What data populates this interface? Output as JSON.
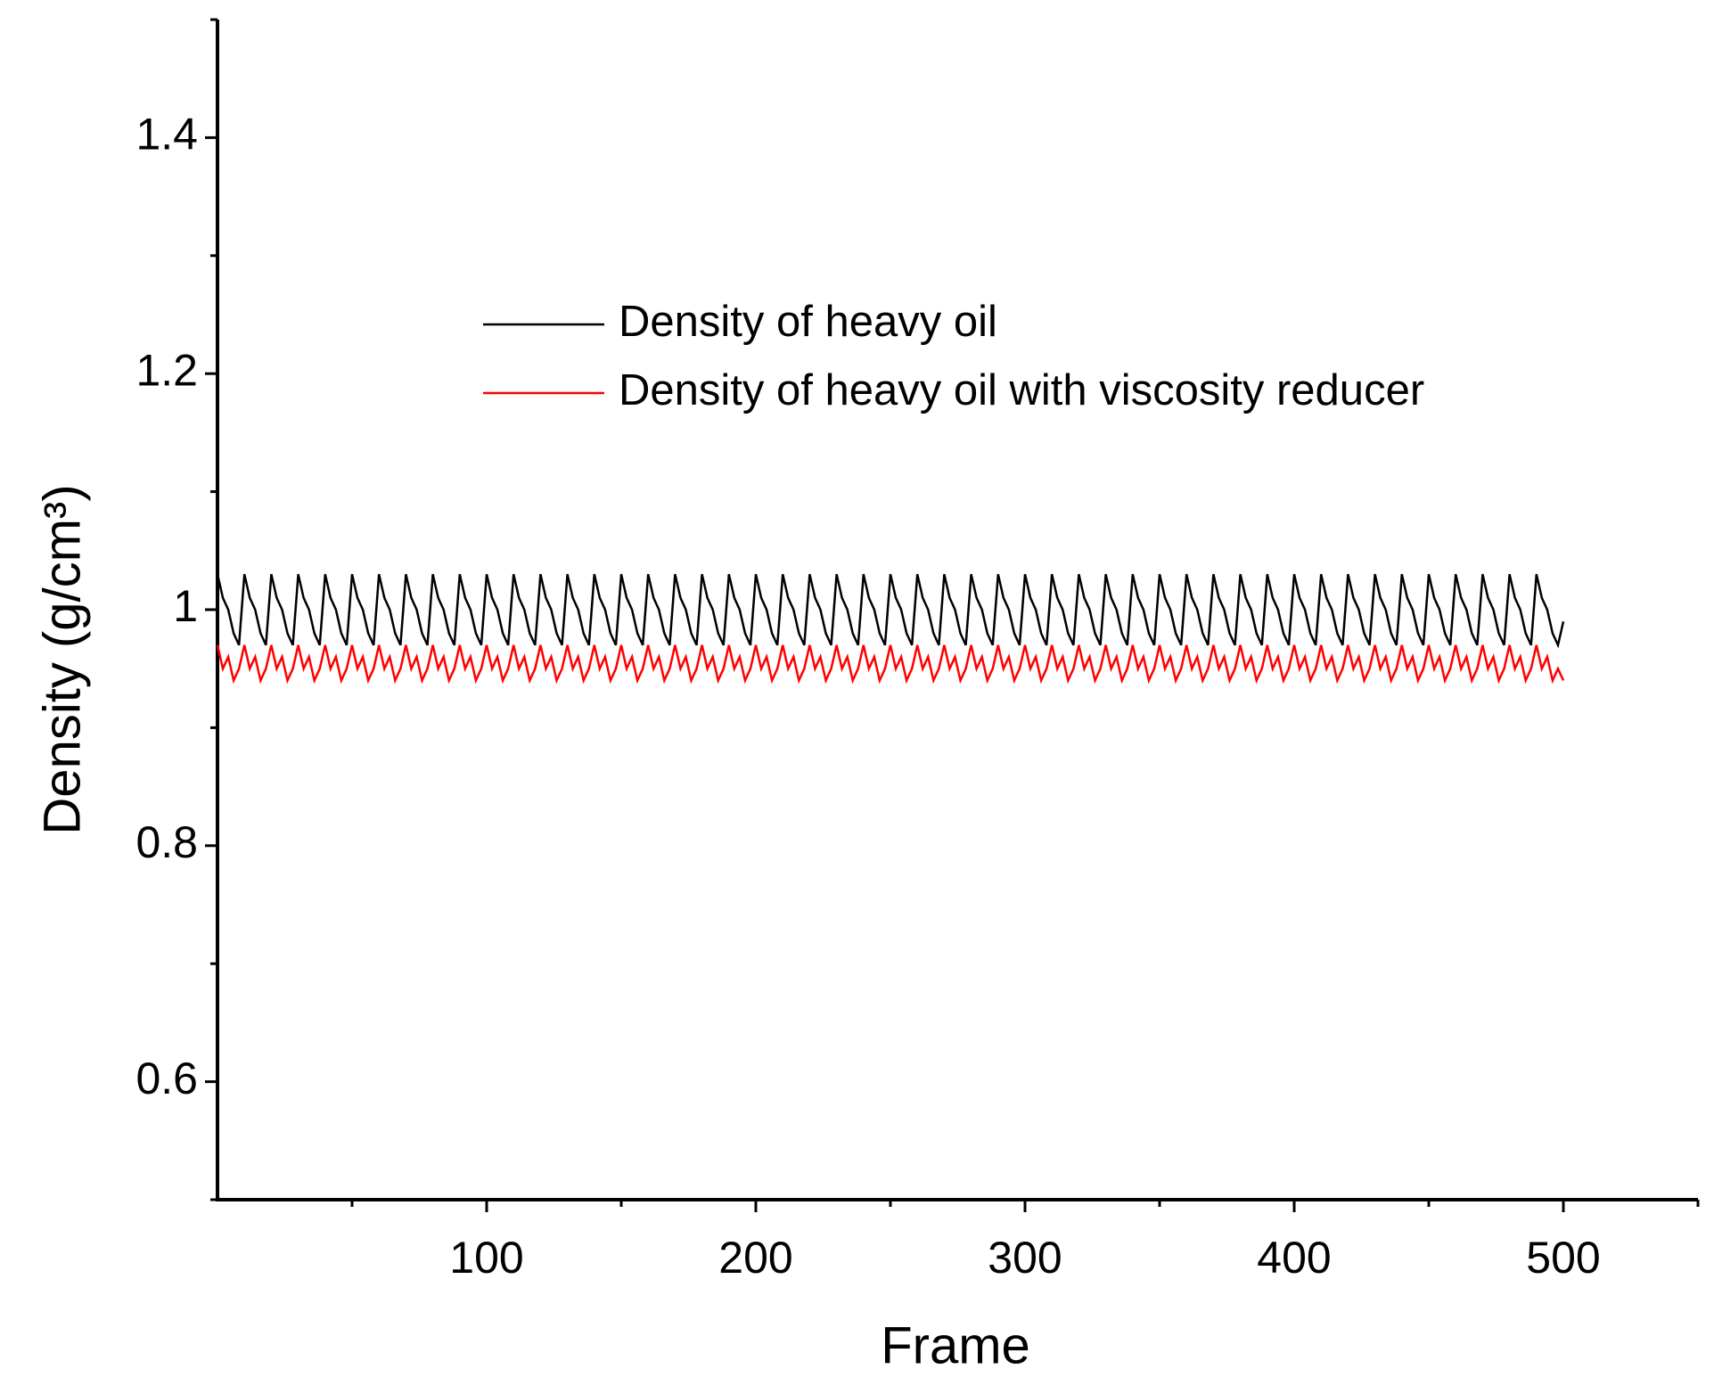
{
  "chart_data": {
    "type": "line",
    "xlabel": "Frame",
    "ylabel": "Density (g/cm³)",
    "xlim": [
      0,
      550
    ],
    "ylim": [
      0.5,
      1.5
    ],
    "xticks": [
      100,
      200,
      300,
      400,
      500
    ],
    "xminorticks": [
      50,
      150,
      250,
      350,
      450,
      550
    ],
    "yticks": [
      0.6,
      0.8,
      1,
      1.2,
      1.4
    ],
    "yminorticks": [
      0.5,
      0.7,
      0.9,
      1.1,
      1.3,
      1.5
    ],
    "legend": "upper-center",
    "x": [
      0,
      2,
      4,
      6,
      8,
      10,
      12,
      14,
      16,
      18,
      20,
      22,
      24,
      26,
      28,
      30,
      32,
      34,
      36,
      38,
      40,
      42,
      44,
      46,
      48,
      50,
      52,
      54,
      56,
      58,
      60,
      62,
      64,
      66,
      68,
      70,
      72,
      74,
      76,
      78,
      80,
      82,
      84,
      86,
      88,
      90,
      92,
      94,
      96,
      98,
      100,
      102,
      104,
      106,
      108,
      110,
      112,
      114,
      116,
      118,
      120,
      122,
      124,
      126,
      128,
      130,
      132,
      134,
      136,
      138,
      140,
      142,
      144,
      146,
      148,
      150,
      152,
      154,
      156,
      158,
      160,
      162,
      164,
      166,
      168,
      170,
      172,
      174,
      176,
      178,
      180,
      182,
      184,
      186,
      188,
      190,
      192,
      194,
      196,
      198,
      200,
      202,
      204,
      206,
      208,
      210,
      212,
      214,
      216,
      218,
      220,
      222,
      224,
      226,
      228,
      230,
      232,
      234,
      236,
      238,
      240,
      242,
      244,
      246,
      248,
      250,
      252,
      254,
      256,
      258,
      260,
      262,
      264,
      266,
      268,
      270,
      272,
      274,
      276,
      278,
      280,
      282,
      284,
      286,
      288,
      290,
      292,
      294,
      296,
      298,
      300,
      302,
      304,
      306,
      308,
      310,
      312,
      314,
      316,
      318,
      320,
      322,
      324,
      326,
      328,
      330,
      332,
      334,
      336,
      338,
      340,
      342,
      344,
      346,
      348,
      350,
      352,
      354,
      356,
      358,
      360,
      362,
      364,
      366,
      368,
      370,
      372,
      374,
      376,
      378,
      380,
      382,
      384,
      386,
      388,
      390,
      392,
      394,
      396,
      398,
      400,
      402,
      404,
      406,
      408,
      410,
      412,
      414,
      416,
      418,
      420,
      422,
      424,
      426,
      428,
      430,
      432,
      434,
      436,
      438,
      440,
      442,
      444,
      446,
      448,
      450,
      452,
      454,
      456,
      458,
      460,
      462,
      464,
      466,
      468,
      470,
      472,
      474,
      476,
      478,
      480,
      482,
      484,
      486,
      488,
      490,
      492,
      494,
      496,
      498,
      500
    ],
    "series": [
      {
        "name": "Density  of heavy oil",
        "color": "#000000",
        "values": [
          1.03,
          1.01,
          1,
          0.98,
          0.97,
          1.03,
          1.01,
          1,
          0.98,
          0.97,
          1.03,
          1.01,
          1,
          0.98,
          0.97,
          1.03,
          1.01,
          1,
          0.98,
          0.97,
          1.03,
          1.01,
          1,
          0.98,
          0.97,
          1.03,
          1.01,
          1,
          0.98,
          0.97,
          1.03,
          1.01,
          1,
          0.98,
          0.97,
          1.03,
          1.01,
          1,
          0.98,
          0.97,
          1.03,
          1.01,
          1,
          0.98,
          0.97,
          1.03,
          1.01,
          1,
          0.98,
          0.97,
          1.03,
          1.01,
          1,
          0.98,
          0.97,
          1.03,
          1.01,
          1,
          0.98,
          0.97,
          1.03,
          1.01,
          1,
          0.98,
          0.97,
          1.03,
          1.01,
          1,
          0.98,
          0.97,
          1.03,
          1.01,
          1,
          0.98,
          0.97,
          1.03,
          1.01,
          1,
          0.98,
          0.97,
          1.03,
          1.01,
          1,
          0.98,
          0.97,
          1.03,
          1.01,
          1,
          0.98,
          0.97,
          1.03,
          1.01,
          1,
          0.98,
          0.97,
          1.03,
          1.01,
          1,
          0.98,
          0.97,
          1.03,
          1.01,
          1,
          0.98,
          0.97,
          1.03,
          1.01,
          1,
          0.98,
          0.97,
          1.03,
          1.01,
          1,
          0.98,
          0.97,
          1.03,
          1.01,
          1,
          0.98,
          0.97,
          1.03,
          1.01,
          1,
          0.98,
          0.97,
          1.03,
          1.01,
          1,
          0.98,
          0.97,
          1.03,
          1.01,
          1,
          0.98,
          0.97,
          1.03,
          1.01,
          1,
          0.98,
          0.97,
          1.03,
          1.01,
          1,
          0.98,
          0.97,
          1.03,
          1.01,
          1,
          0.98,
          0.97,
          1.03,
          1.01,
          1,
          0.98,
          0.97,
          1.03,
          1.01,
          1,
          0.98,
          0.97,
          1.03,
          1.01,
          1,
          0.98,
          0.97,
          1.03,
          1.01,
          1,
          0.98,
          0.97,
          1.03,
          1.01,
          1,
          0.98,
          0.97,
          1.03,
          1.01,
          1,
          0.98,
          0.97,
          1.03,
          1.01,
          1,
          0.98,
          0.97,
          1.03,
          1.01,
          1,
          0.98,
          0.97,
          1.03,
          1.01,
          1,
          0.98,
          0.97,
          1.03,
          1.01,
          1,
          0.98,
          0.97,
          1.03,
          1.01,
          1,
          0.98,
          0.97,
          1.03,
          1.01,
          1,
          0.98,
          0.97,
          1.03,
          1.01,
          1,
          0.98,
          0.97,
          1.03,
          1.01,
          1,
          0.98,
          0.97,
          1.03,
          1.01,
          1,
          0.98,
          0.97,
          1.03,
          1.01,
          1,
          0.98,
          0.97,
          1.03,
          1.01,
          1,
          0.98,
          0.97,
          1.03,
          1.01,
          1,
          0.98,
          0.97,
          1.03,
          1.01,
          1,
          0.98,
          0.97,
          1.03,
          1.01,
          1,
          0.98,
          0.97,
          0.99
        ]
      },
      {
        "name": "Density of heavy oil with viscosity reducer",
        "color": "#ff0000",
        "values": [
          0.97,
          0.95,
          0.96,
          0.94,
          0.95,
          0.97,
          0.95,
          0.96,
          0.94,
          0.95,
          0.97,
          0.95,
          0.96,
          0.94,
          0.95,
          0.97,
          0.95,
          0.96,
          0.94,
          0.95,
          0.97,
          0.95,
          0.96,
          0.94,
          0.95,
          0.97,
          0.95,
          0.96,
          0.94,
          0.95,
          0.97,
          0.95,
          0.96,
          0.94,
          0.95,
          0.97,
          0.95,
          0.96,
          0.94,
          0.95,
          0.97,
          0.95,
          0.96,
          0.94,
          0.95,
          0.97,
          0.95,
          0.96,
          0.94,
          0.95,
          0.97,
          0.95,
          0.96,
          0.94,
          0.95,
          0.97,
          0.95,
          0.96,
          0.94,
          0.95,
          0.97,
          0.95,
          0.96,
          0.94,
          0.95,
          0.97,
          0.95,
          0.96,
          0.94,
          0.95,
          0.97,
          0.95,
          0.96,
          0.94,
          0.95,
          0.97,
          0.95,
          0.96,
          0.94,
          0.95,
          0.97,
          0.95,
          0.96,
          0.94,
          0.95,
          0.97,
          0.95,
          0.96,
          0.94,
          0.95,
          0.97,
          0.95,
          0.96,
          0.94,
          0.95,
          0.97,
          0.95,
          0.96,
          0.94,
          0.95,
          0.97,
          0.95,
          0.96,
          0.94,
          0.95,
          0.97,
          0.95,
          0.96,
          0.94,
          0.95,
          0.97,
          0.95,
          0.96,
          0.94,
          0.95,
          0.97,
          0.95,
          0.96,
          0.94,
          0.95,
          0.97,
          0.95,
          0.96,
          0.94,
          0.95,
          0.97,
          0.95,
          0.96,
          0.94,
          0.95,
          0.97,
          0.95,
          0.96,
          0.94,
          0.95,
          0.97,
          0.95,
          0.96,
          0.94,
          0.95,
          0.97,
          0.95,
          0.96,
          0.94,
          0.95,
          0.97,
          0.95,
          0.96,
          0.94,
          0.95,
          0.97,
          0.95,
          0.96,
          0.94,
          0.95,
          0.97,
          0.95,
          0.96,
          0.94,
          0.95,
          0.97,
          0.95,
          0.96,
          0.94,
          0.95,
          0.97,
          0.95,
          0.96,
          0.94,
          0.95,
          0.97,
          0.95,
          0.96,
          0.94,
          0.95,
          0.97,
          0.95,
          0.96,
          0.94,
          0.95,
          0.97,
          0.95,
          0.96,
          0.94,
          0.95,
          0.97,
          0.95,
          0.96,
          0.94,
          0.95,
          0.97,
          0.95,
          0.96,
          0.94,
          0.95,
          0.97,
          0.95,
          0.96,
          0.94,
          0.95,
          0.97,
          0.95,
          0.96,
          0.94,
          0.95,
          0.97,
          0.95,
          0.96,
          0.94,
          0.95,
          0.97,
          0.95,
          0.96,
          0.94,
          0.95,
          0.97,
          0.95,
          0.96,
          0.94,
          0.95,
          0.97,
          0.95,
          0.96,
          0.94,
          0.95,
          0.97,
          0.95,
          0.96,
          0.94,
          0.95,
          0.97,
          0.95,
          0.96,
          0.94,
          0.95,
          0.97,
          0.95,
          0.96,
          0.94,
          0.95,
          0.97,
          0.95,
          0.96,
          0.94,
          0.95,
          0.97,
          0.95,
          0.96,
          0.94,
          0.95,
          0.94
        ]
      }
    ]
  }
}
